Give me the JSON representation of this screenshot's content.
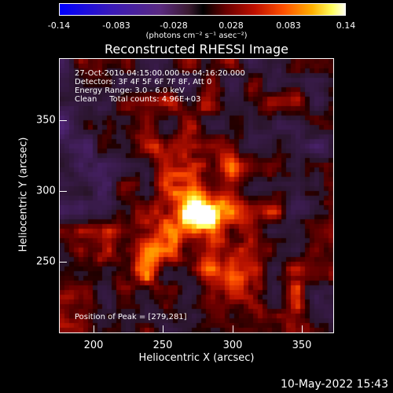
{
  "colorbar": {
    "tick_labels": [
      "-0.14",
      "-0.083",
      "-0.028",
      "0.028",
      "0.083",
      "0.14"
    ],
    "units": "(photons cm⁻² s⁻¹ asec⁻²)"
  },
  "plot": {
    "title": "Reconstructed RHESSI Image",
    "info_lines": [
      "27-Oct-2010 04:15:00.000 to 04:16:20.000",
      "Detectors: 3F 4F 5F 6F 7F 8F, Att 0",
      "Energy Range: 3.0 - 6.0 keV",
      "Clean     Total counts: 4.96E+03"
    ],
    "peak_label": "Position of Peak = [279,281]",
    "xlabel": "Heliocentric X (arcsec)",
    "ylabel": "Heliocentric Y (arcsec)",
    "x_ticks": [
      "200",
      "250",
      "300",
      "350"
    ],
    "y_ticks": [
      "250",
      "300",
      "350"
    ],
    "x_range": [
      178,
      372
    ],
    "y_range": [
      195,
      389
    ]
  },
  "timestamp": "10-May-2022 15:43",
  "colors": {
    "background": "#000000",
    "foreground": "#ffffff"
  }
}
